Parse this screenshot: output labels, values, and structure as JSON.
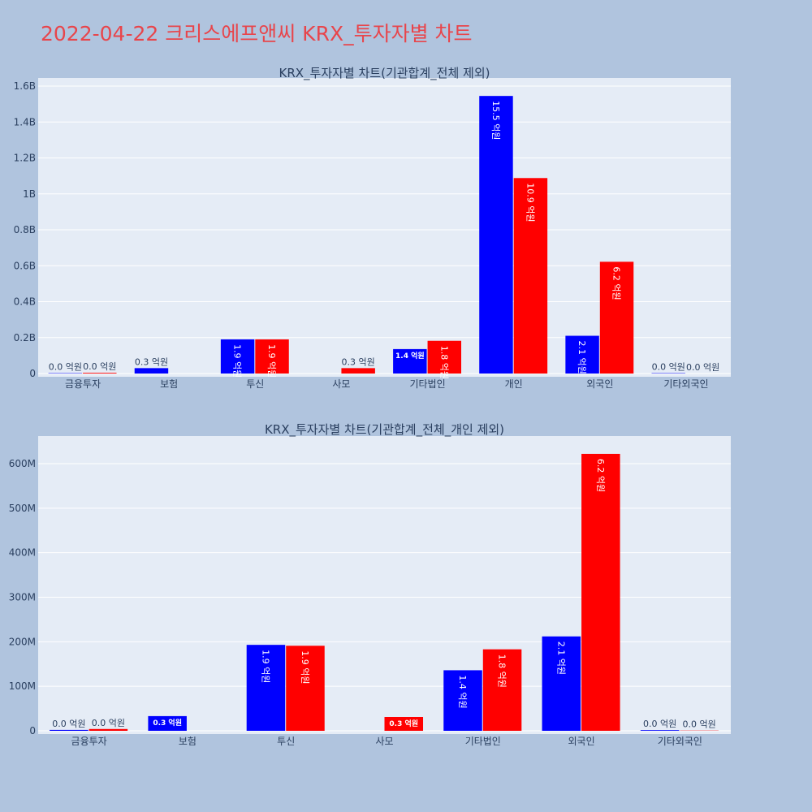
{
  "page_title": "2022-04-22 크리스에프앤씨 KRX_투자자별 차트",
  "colors": {
    "buy": "#0000ff",
    "sell": "#ff0000",
    "background": "#b0c4de",
    "plot_bg": "#e5ecf6",
    "title": "#e8454b"
  },
  "chart_data": [
    {
      "type": "bar",
      "title": "KRX_투자자별 차트(기관합계_전체 제외)",
      "categories": [
        "금융투자",
        "보험",
        "투신",
        "사모",
        "기타법인",
        "개인",
        "외국인",
        "기타외국인"
      ],
      "series": [
        {
          "values": [
            0.002,
            0.03,
            0.19,
            0.0,
            0.136,
            1.545,
            0.21,
            0.002
          ],
          "labels": [
            "0.0 억원",
            "0.3 억원",
            "1.9 억원",
            "",
            "1.4 억원",
            "15.5 억원",
            "2.1 억원",
            "0.0 억원"
          ]
        },
        {
          "values": [
            0.004,
            0.0,
            0.19,
            0.03,
            0.182,
            1.088,
            0.622,
            0.0
          ],
          "labels": [
            "0.0 억원",
            "",
            "1.9 억원",
            "0.3 억원",
            "1.8 억원",
            "10.9 억원",
            "6.2 억원",
            "0.0 억원"
          ]
        }
      ],
      "ylim": [
        0,
        1.6
      ],
      "yticks": [
        0,
        0.2,
        0.4,
        0.6,
        0.8,
        1.0,
        1.2,
        1.4,
        1.6
      ],
      "ytick_labels": [
        "0",
        "0.2B",
        "0.4B",
        "0.6B",
        "0.8B",
        "1B",
        "1.2B",
        "1.4B",
        "1.6B"
      ],
      "grid": true
    },
    {
      "type": "bar",
      "title": "KRX_투자자별 차트(기관합계_전체_개인 제외)",
      "categories": [
        "금융투자",
        "보험",
        "투신",
        "사모",
        "기타법인",
        "외국인",
        "기타외국인"
      ],
      "series": [
        {
          "values": [
            0.002,
            0.033,
            0.193,
            0.0,
            0.136,
            0.212,
            0.0015
          ],
          "labels": [
            "0.0 억원",
            "0.3 억원",
            "1.9 억원",
            "",
            "1.4 억원",
            "2.1 억원",
            "0.0 억원"
          ]
        },
        {
          "values": [
            0.004,
            0.0,
            0.191,
            0.031,
            0.183,
            0.622,
            0.0005
          ],
          "labels": [
            "0.0 억원",
            "",
            "1.9 억원",
            "0.3 억원",
            "1.8 억원",
            "6.2 억원",
            "0.0 억원"
          ]
        }
      ],
      "ylim": [
        0,
        0.6
      ],
      "yticks": [
        0,
        0.1,
        0.2,
        0.3,
        0.4,
        0.5,
        0.6
      ],
      "ytick_labels": [
        "0",
        "100M",
        "200M",
        "300M",
        "400M",
        "500M",
        "600M"
      ],
      "grid": true
    }
  ]
}
